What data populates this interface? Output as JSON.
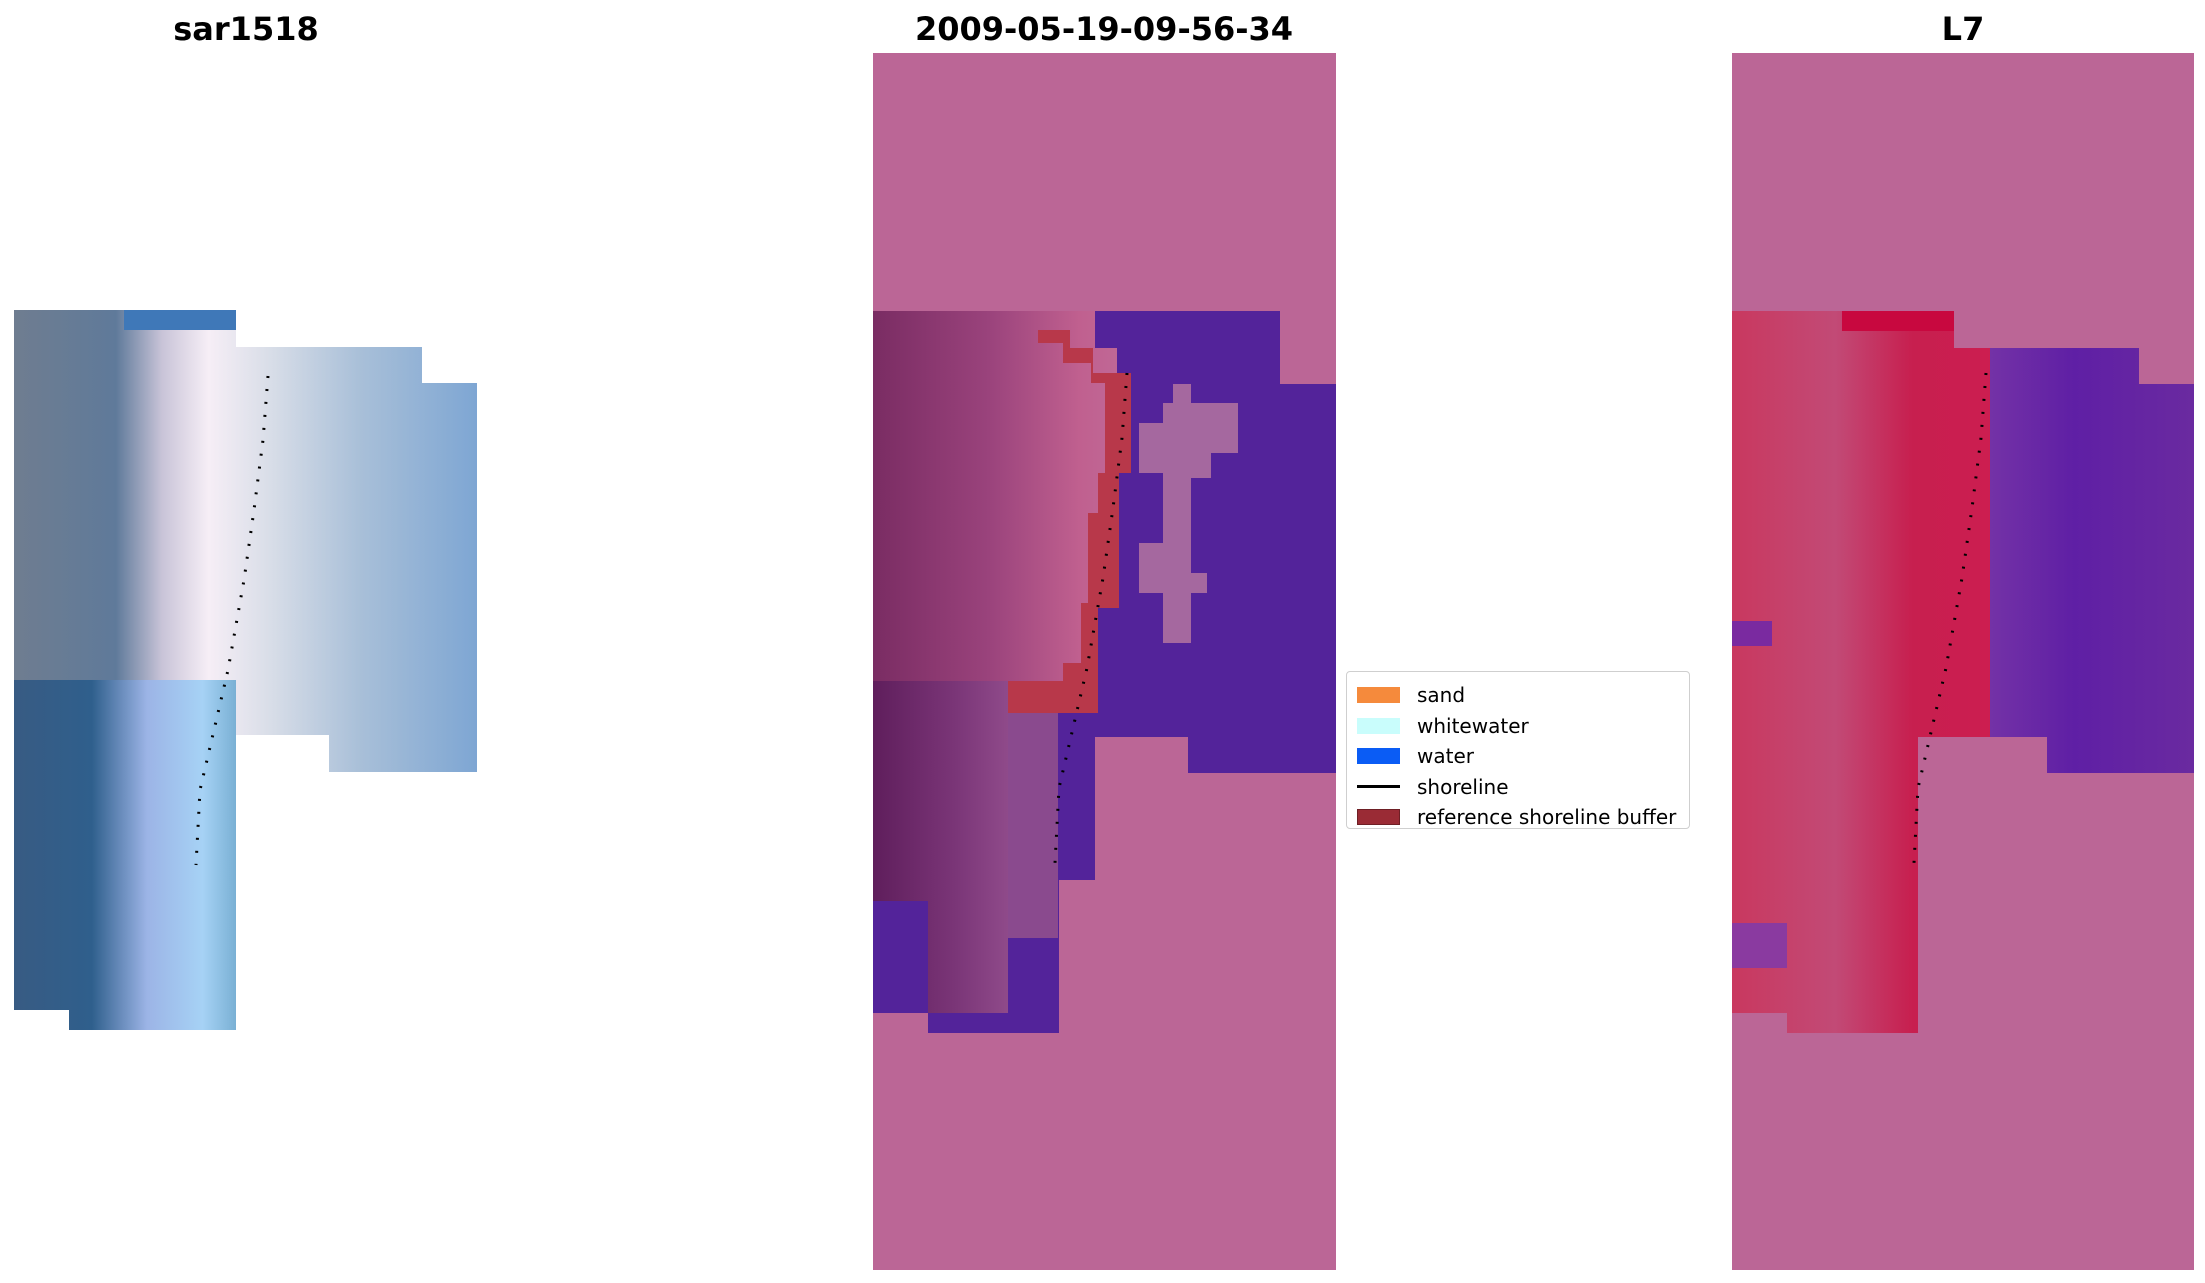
{
  "panels": [
    {
      "title": "sar1518"
    },
    {
      "title": "2009-05-19-09-56-34"
    },
    {
      "title": "L7"
    }
  ],
  "legend": {
    "items": [
      {
        "label": "sand",
        "kind": "patch",
        "color": "#f58a3c"
      },
      {
        "label": "whitewater",
        "kind": "patch",
        "color": "#c9fdfc"
      },
      {
        "label": "water",
        "kind": "patch",
        "color": "#0a5cf5"
      },
      {
        "label": "shoreline",
        "kind": "line",
        "color": "#000000"
      },
      {
        "label": "reference shoreline buffer",
        "kind": "patch",
        "color": "#9a2b35"
      }
    ]
  },
  "colors": {
    "nodata_overlay": "#bb6696",
    "water_overlay": "#53239a",
    "sand_overlay": "#a5689f",
    "buffer_overlay": "#b8384a",
    "rgb_water": "#5d8fc7",
    "rgb_beach": "#e8e4f2",
    "ndwi_land": "#c71f4f",
    "ndwi_water": "#5f1fa5"
  }
}
